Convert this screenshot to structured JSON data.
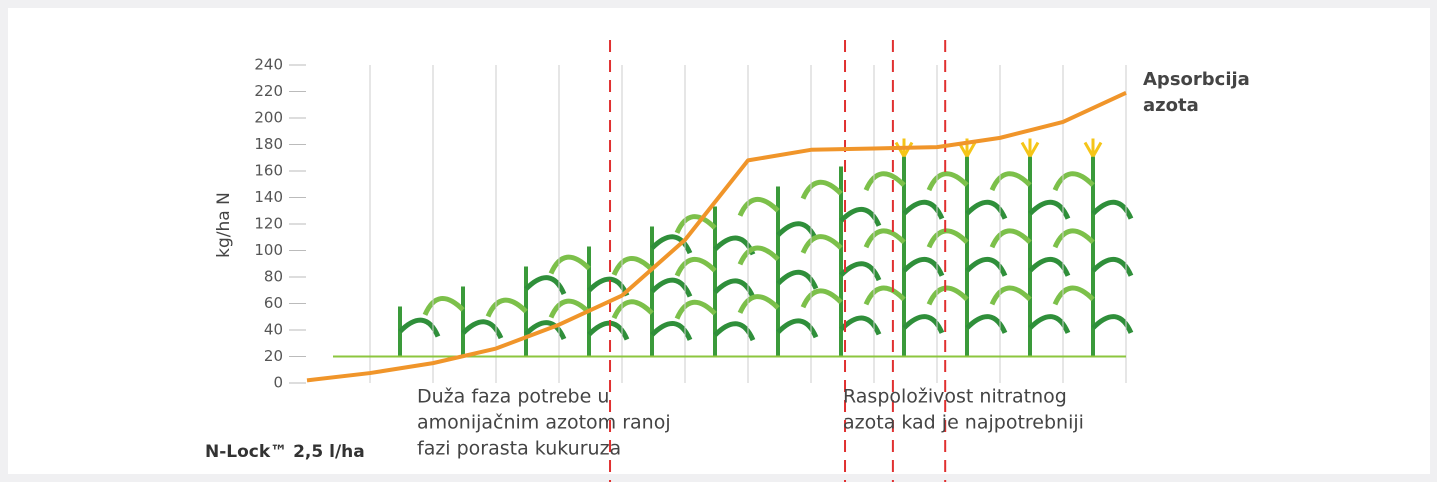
{
  "chart_data": {
    "type": "line",
    "y_label": "kg/ha N",
    "x": [
      0,
      1,
      2,
      3,
      4,
      5,
      6,
      7,
      8,
      9,
      10,
      11,
      12,
      13
    ],
    "xlim": [
      0,
      13
    ],
    "ylim": [
      0,
      240
    ],
    "yticks": [
      0,
      20,
      40,
      60,
      80,
      100,
      120,
      140,
      160,
      180,
      200,
      220,
      240
    ],
    "series": [
      {
        "name": [
          "Apsorbcija",
          "azota"
        ],
        "color": "#f0952a",
        "values": [
          2,
          7.5,
          15,
          26,
          44,
          66,
          108,
          168,
          176,
          177,
          178,
          185,
          197,
          219
        ]
      }
    ],
    "hline": 20,
    "markers": [
      4.81,
      8.54,
      9.3,
      10.13
    ],
    "annotations": [
      [
        "Duža faza potrebe u",
        "amonijačnim azotom ranoj",
        "fazi porasta kukuruza"
      ],
      [
        "Raspoloživost nitratnog",
        "azota kad je najpotrebniji"
      ]
    ],
    "footnote": "N-Lock™ 2,5 l/ha"
  }
}
